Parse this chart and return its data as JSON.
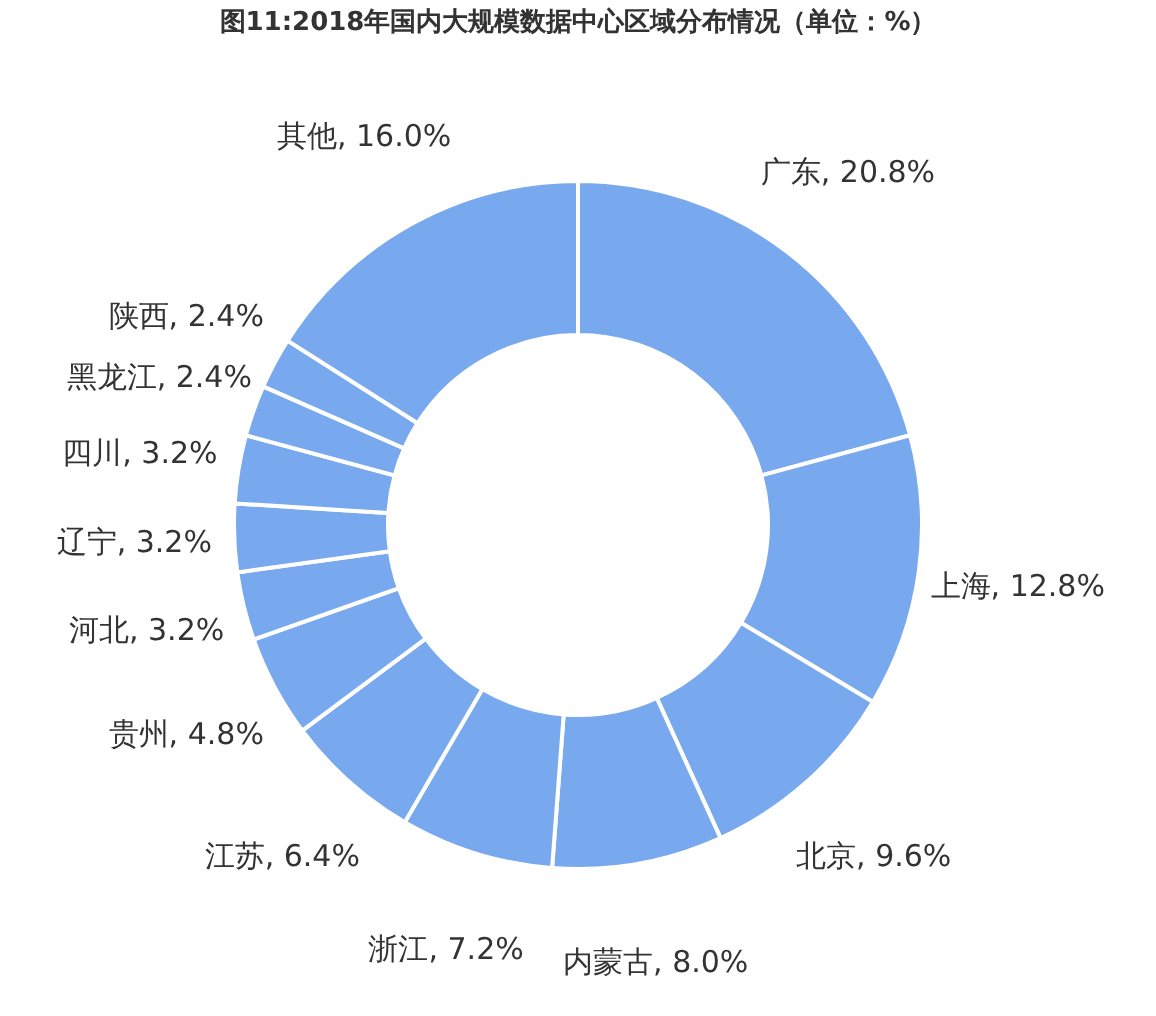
{
  "chart_data": {
    "type": "donut",
    "title": "图11:2018年国内大规模数据中心区域分布情况（单位：%）",
    "categories": [
      "广东",
      "上海",
      "北京",
      "内蒙古",
      "浙江",
      "江苏",
      "贵州",
      "河北",
      "辽宁",
      "四川",
      "黑龙江",
      "陕西",
      "其他"
    ],
    "values": [
      20.8,
      12.8,
      9.6,
      8.0,
      7.2,
      6.4,
      4.8,
      3.2,
      3.2,
      3.2,
      2.4,
      2.4,
      16.0
    ],
    "value_labels": [
      "20.8%",
      "12.8%",
      "9.6%",
      "8.0%",
      "7.2%",
      "6.4%",
      "4.8%",
      "3.2%",
      "3.2%",
      "3.2%",
      "2.4%",
      "2.4%",
      "16.0%"
    ],
    "colors": [
      "#78a9ee",
      "#78a9ee",
      "#78a9ee",
      "#78a9ee",
      "#78a9ee",
      "#78a9ee",
      "#78a9ee",
      "#78a9ee",
      "#78a9ee",
      "#78a9ee",
      "#78a9ee",
      "#78a9ee",
      "#78a9ee"
    ],
    "legend": false
  }
}
